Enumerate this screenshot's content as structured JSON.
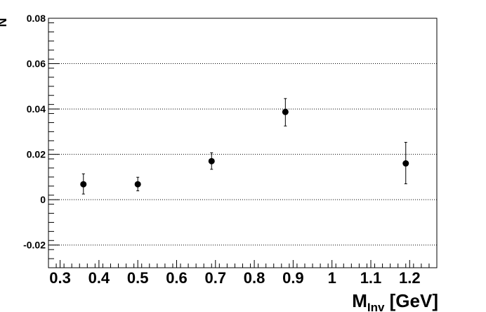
{
  "chart_data": {
    "type": "scatter",
    "xlabel_main": "M",
    "xlabel_sub": "Inv",
    "xlabel_unit": " [GeV]",
    "ylabel": "N",
    "xlim": [
      0.27,
      1.27
    ],
    "ylim": [
      -0.03,
      0.08
    ],
    "x_ticks": [
      0.3,
      0.4,
      0.5,
      0.6,
      0.7,
      0.8,
      0.9,
      1,
      1.1,
      1.2
    ],
    "x_tick_labels": [
      "0.3",
      "0.4",
      "0.5",
      "0.6",
      "0.7",
      "0.8",
      "0.9",
      "1",
      "1.1",
      "1.2"
    ],
    "y_ticks": [
      -0.02,
      0,
      0.02,
      0.04,
      0.06,
      0.08
    ],
    "y_tick_labels": [
      "-0.02",
      "0",
      "0.02",
      "0.04",
      "0.06",
      "0.08"
    ],
    "grid_y": true,
    "grid_x": false,
    "points": [
      {
        "x": 0.36,
        "y": 0.0068,
        "err_low": 0.0043,
        "err_high": 0.0046
      },
      {
        "x": 0.5,
        "y": 0.0068,
        "err_low": 0.0029,
        "err_high": 0.0031
      },
      {
        "x": 0.69,
        "y": 0.017,
        "err_low": 0.0036,
        "err_high": 0.0037
      },
      {
        "x": 0.88,
        "y": 0.0387,
        "err_low": 0.0062,
        "err_high": 0.0059
      },
      {
        "x": 1.19,
        "y": 0.016,
        "err_low": 0.009,
        "err_high": 0.0093
      }
    ],
    "colors": {
      "marker": "#000000",
      "axis": "#000000",
      "grid": "#000000"
    }
  }
}
